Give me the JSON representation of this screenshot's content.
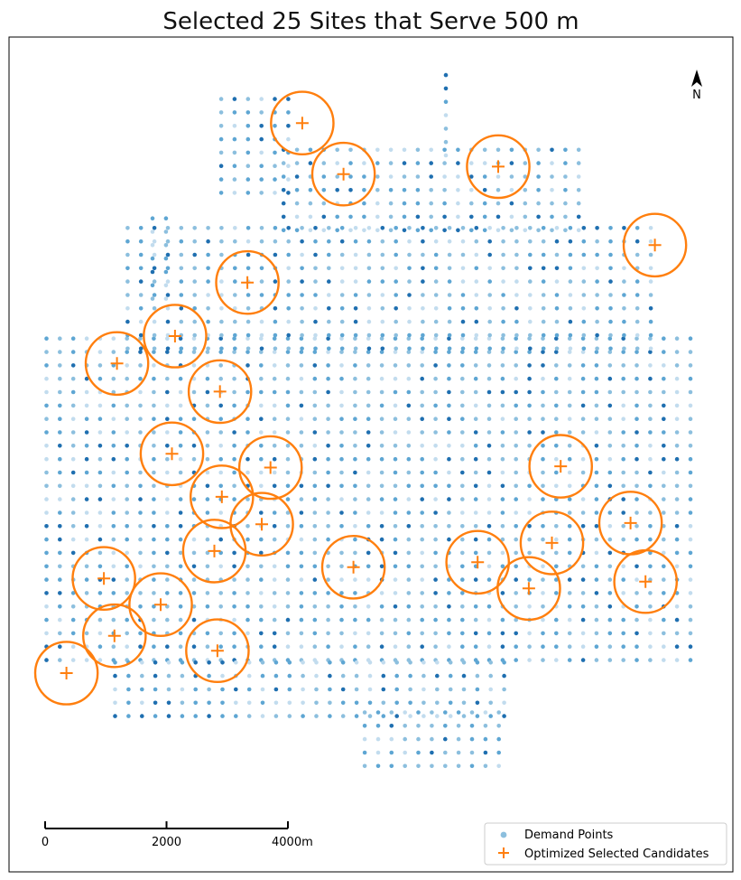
{
  "chart_data": {
    "type": "scatter",
    "title": "Selected 25 Sites that Serve 500 m",
    "xlabel": "",
    "ylabel": "",
    "legend_position": "bottom-right",
    "grid": false,
    "north_arrow": {
      "label": "N",
      "position": "top-right"
    },
    "scale_bar": {
      "ticks": [
        {
          "value": 0,
          "label": "0"
        },
        {
          "value": 2000,
          "label": "2000"
        },
        {
          "value": 4000,
          "label": "4000m"
        }
      ]
    },
    "xlim": [
      -600,
      11000
    ],
    "ylim": [
      -1700,
      11700
    ],
    "service_radius": 500,
    "series": [
      {
        "name": "Demand Points",
        "kind": "demand",
        "color": "#8cbfde",
        "regions": [
          {
            "x0": 0,
            "x1": 10500,
            "y0": 1700,
            "y1": 6900,
            "step": 215
          },
          {
            "x0": 1300,
            "x1": 9700,
            "y0": 6700,
            "y1": 8700,
            "step": 215
          },
          {
            "x0": 3800,
            "x1": 8600,
            "y0": 8600,
            "y1": 10000,
            "step": 215
          },
          {
            "x0": 2800,
            "x1": 4000,
            "y0": 9200,
            "y1": 10800,
            "step": 215
          },
          {
            "x0": 1100,
            "x1": 7400,
            "y0": 800,
            "y1": 1800,
            "step": 215
          },
          {
            "x0": 5100,
            "x1": 7400,
            "y0": 0,
            "y1": 900,
            "step": 215
          },
          {
            "x0": 1700,
            "x1": 2100,
            "y0": 7500,
            "y1": 8800,
            "step": 215
          },
          {
            "x0": 6400,
            "x1": 6500,
            "y0": 9800,
            "y1": 11300,
            "step": 215
          }
        ]
      },
      {
        "name": "Optimized Selected Candidates",
        "kind": "candidate",
        "color": "#ff7f0e",
        "points": [
          {
            "x": 4100,
            "y": 10320
          },
          {
            "x": 4760,
            "y": 9500
          },
          {
            "x": 7240,
            "y": 9620
          },
          {
            "x": 9750,
            "y": 8360
          },
          {
            "x": 3220,
            "y": 7760
          },
          {
            "x": 2060,
            "y": 6900
          },
          {
            "x": 1130,
            "y": 6460
          },
          {
            "x": 2780,
            "y": 6010
          },
          {
            "x": 2010,
            "y": 5010
          },
          {
            "x": 3590,
            "y": 4790
          },
          {
            "x": 2810,
            "y": 4320
          },
          {
            "x": 3450,
            "y": 3880
          },
          {
            "x": 2690,
            "y": 3450
          },
          {
            "x": 8240,
            "y": 4810
          },
          {
            "x": 9360,
            "y": 3900
          },
          {
            "x": 8100,
            "y": 3580
          },
          {
            "x": 4920,
            "y": 3190
          },
          {
            "x": 6910,
            "y": 3270
          },
          {
            "x": 7730,
            "y": 2850
          },
          {
            "x": 9600,
            "y": 2960
          },
          {
            "x": 920,
            "y": 3010
          },
          {
            "x": 1830,
            "y": 2590
          },
          {
            "x": 1090,
            "y": 2090
          },
          {
            "x": 2740,
            "y": 1850
          },
          {
            "x": 320,
            "y": 1490
          }
        ]
      }
    ]
  }
}
